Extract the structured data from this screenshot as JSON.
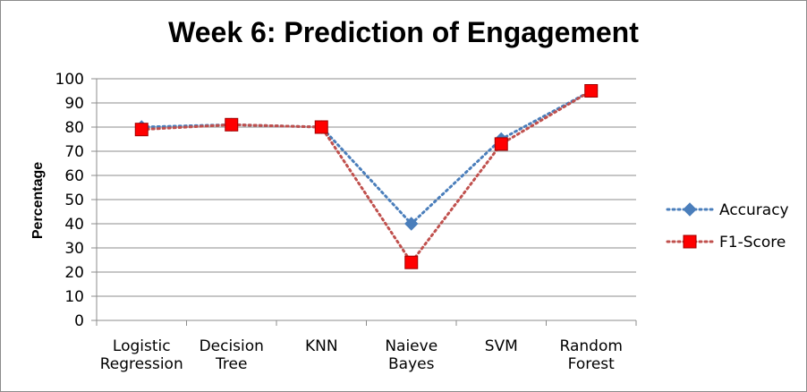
{
  "chart_data": {
    "type": "line",
    "title": "Week 6: Prediction of Engagement",
    "xlabel": "",
    "ylabel": "Percentage",
    "ylim": [
      0,
      100
    ],
    "yticks": [
      "0",
      "10",
      "20",
      "30",
      "40",
      "50",
      "60",
      "70",
      "80",
      "90",
      "100"
    ],
    "categories": [
      [
        "Logistic",
        "Regression"
      ],
      [
        "Decision",
        "Tree"
      ],
      [
        "KNN"
      ],
      [
        "Naieve",
        "Bayes"
      ],
      [
        "SVM"
      ],
      [
        "Random",
        "Forest"
      ]
    ],
    "grid": true,
    "legend_position": "right",
    "series": [
      {
        "name": "Accuracy",
        "values": [
          80,
          81,
          80,
          40,
          75,
          95
        ],
        "color": "#4a7ebb",
        "marker": "diamond"
      },
      {
        "name": "F1-Score",
        "values": [
          79,
          81,
          80,
          24,
          73,
          95
        ],
        "color": "#ff0000",
        "line_color": "#c0504d",
        "marker": "square"
      }
    ]
  }
}
